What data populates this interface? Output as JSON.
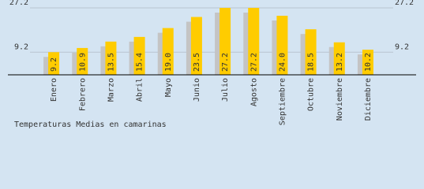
{
  "chart_data": {
    "type": "bar",
    "title": "Temperaturas Medias en camarinas",
    "categories": [
      "Enero",
      "Febrero",
      "Marzo",
      "Abril",
      "Mayo",
      "Junio",
      "Julio",
      "Agosto",
      "Septiembre",
      "Octubre",
      "Noviembre",
      "Diciembre"
    ],
    "values": [
      9.2,
      10.9,
      13.5,
      15.4,
      19.0,
      23.5,
      27.2,
      27.2,
      24.0,
      18.5,
      13.2,
      10.2
    ],
    "value_labels": [
      "9.2",
      "10.9",
      "13.5",
      "15.4",
      "19.0",
      "23.5",
      "27.2",
      "27.2",
      "24.0",
      "18.5",
      "13.2",
      "10.2"
    ],
    "color": "#ffcc00",
    "shadow_color": "#c4c4c4",
    "ylim": [
      0,
      27.2
    ],
    "yticks": [
      9.2,
      27.2
    ],
    "grid": true
  }
}
